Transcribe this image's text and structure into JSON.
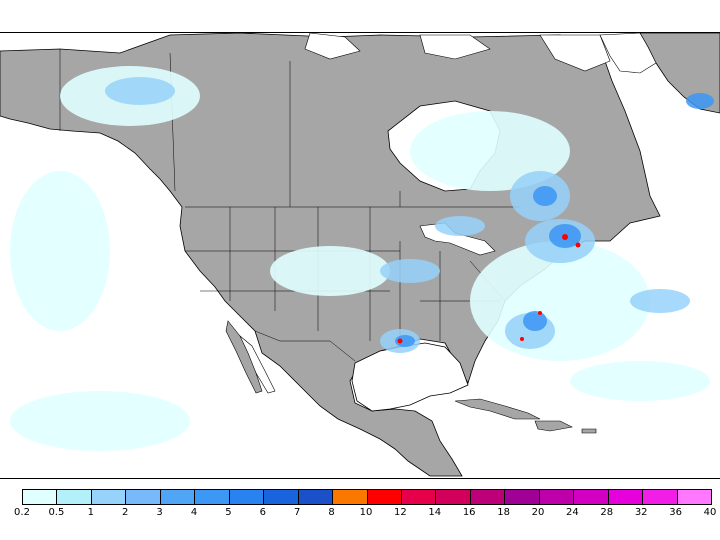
{
  "map": {
    "ocean_color": "#ffffff",
    "land_color": "#a6a6a6",
    "border_color": "#000000",
    "region": "North America"
  },
  "legend": {
    "colors": [
      "#e0ffff",
      "#b4f0fa",
      "#96d2fa",
      "#78b9fa",
      "#50a5f5",
      "#3c97f5",
      "#2882f0",
      "#1964dc",
      "#1a50c8",
      "#fa7800",
      "#ff0000",
      "#e6004b",
      "#d2005a",
      "#be0078",
      "#a00096",
      "#be00aa",
      "#d200c3",
      "#e600dc",
      "#f01ee6",
      "#ff78ff"
    ],
    "labels": [
      "0.2",
      "0.5",
      "1",
      "2",
      "3",
      "4",
      "5",
      "6",
      "7",
      "8",
      "10",
      "12",
      "14",
      "16",
      "18",
      "20",
      "24",
      "28",
      "32",
      "36",
      "40"
    ]
  }
}
